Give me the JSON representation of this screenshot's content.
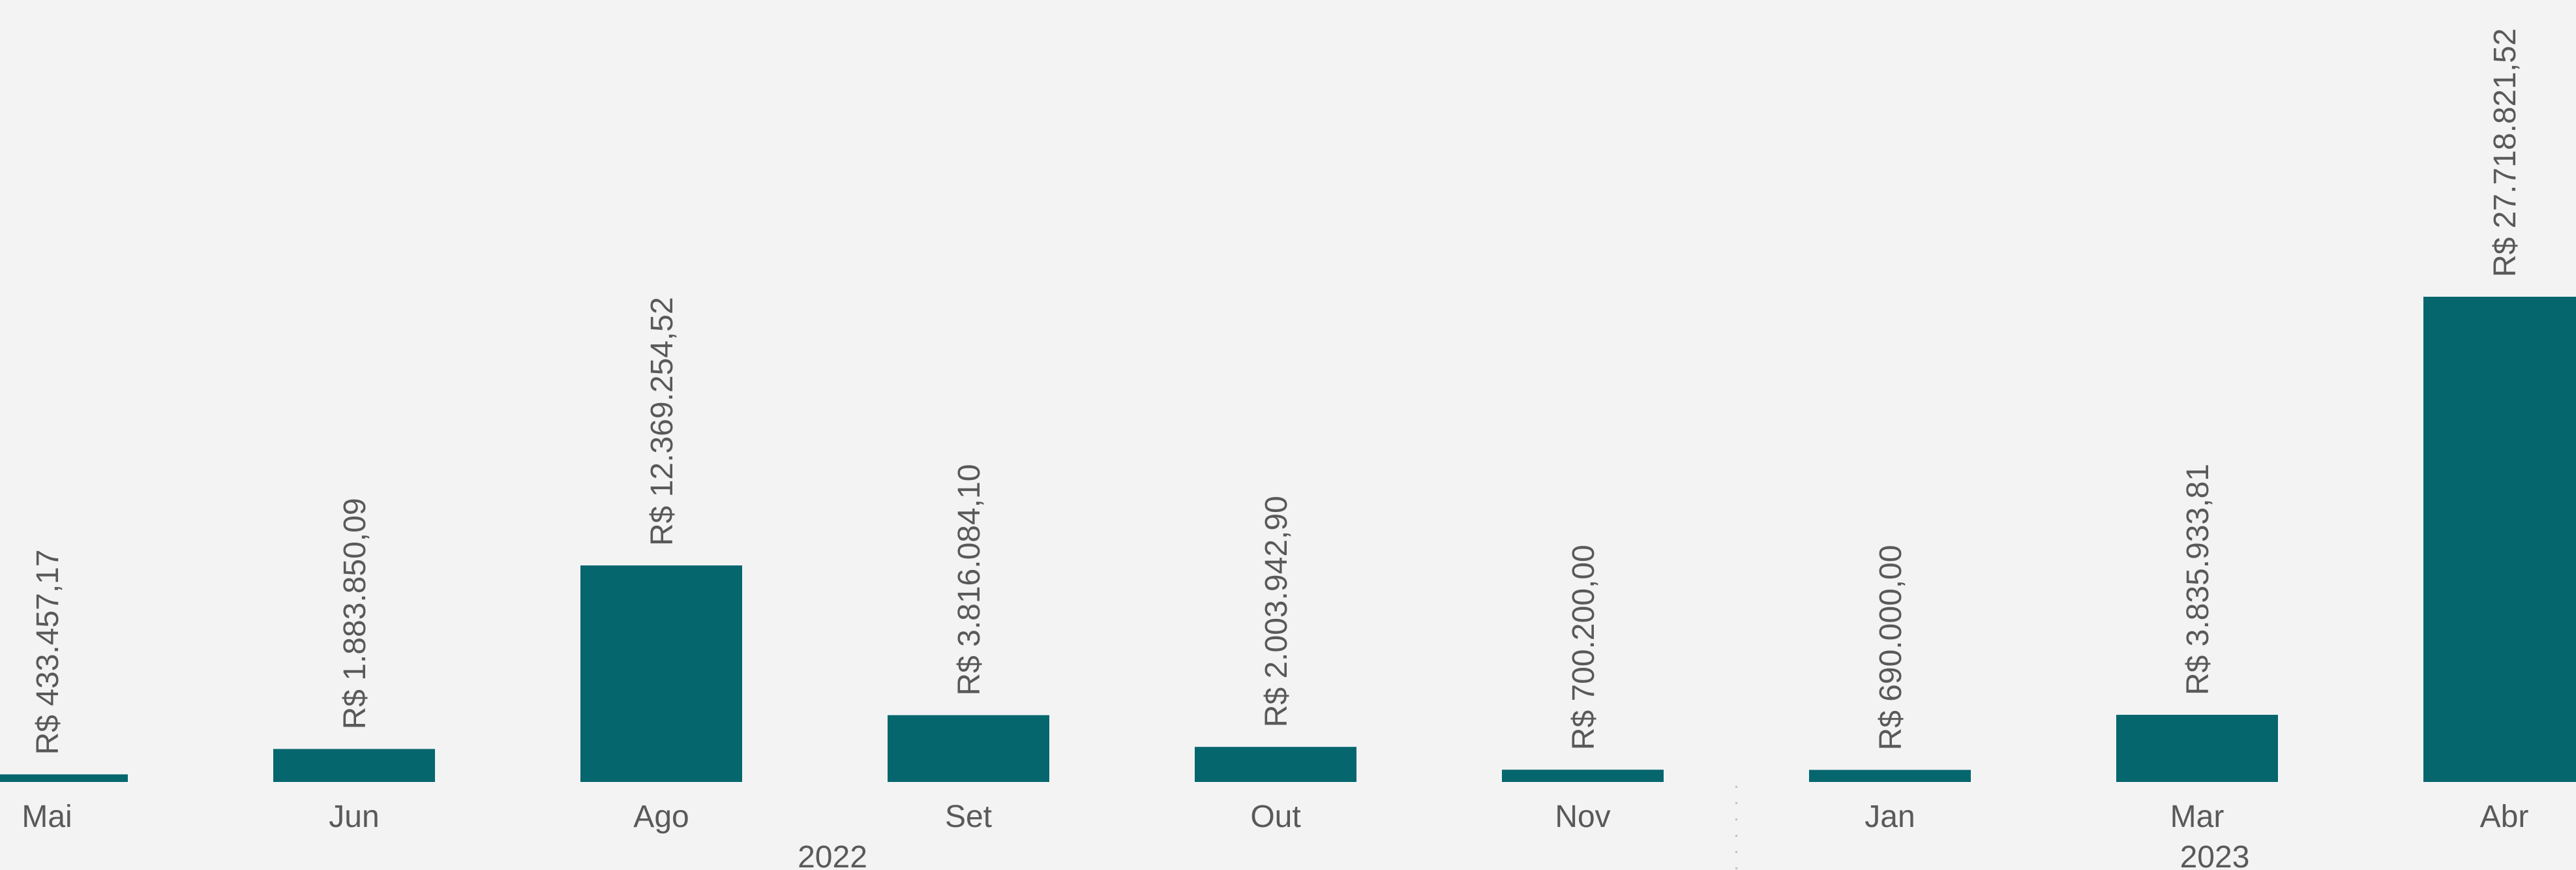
{
  "chart_data": {
    "type": "bar",
    "categories": [
      "Mai",
      "Jun",
      "Ago",
      "Set",
      "Out",
      "Nov",
      "Jan",
      "Mar",
      "Abr"
    ],
    "groups": [
      {
        "label": "2022",
        "categories": [
          "Mai",
          "Jun",
          "Ago",
          "Set",
          "Out",
          "Nov"
        ]
      },
      {
        "label": "2023",
        "categories": [
          "Jan",
          "Mar",
          "Abr"
        ]
      }
    ],
    "values": [
      433457.17,
      1883850.09,
      12369254.52,
      3816084.1,
      2003942.9,
      700200.0,
      690000.0,
      3835933.81,
      27718821.52
    ],
    "data_labels": [
      "R$ 433.457,17",
      "R$ 1.883.850,09",
      "R$ 12.369.254,52",
      "R$ 3.816.084,10",
      "R$ 2.003.942,90",
      "R$ 700.200,00",
      "R$ 690.000,00",
      "R$ 3.835.933,81",
      "R$ 27.718.821,52"
    ],
    "bar_color": "#05666e",
    "ylim": [
      0,
      27718821.52
    ],
    "grid": false,
    "legend": "none"
  }
}
